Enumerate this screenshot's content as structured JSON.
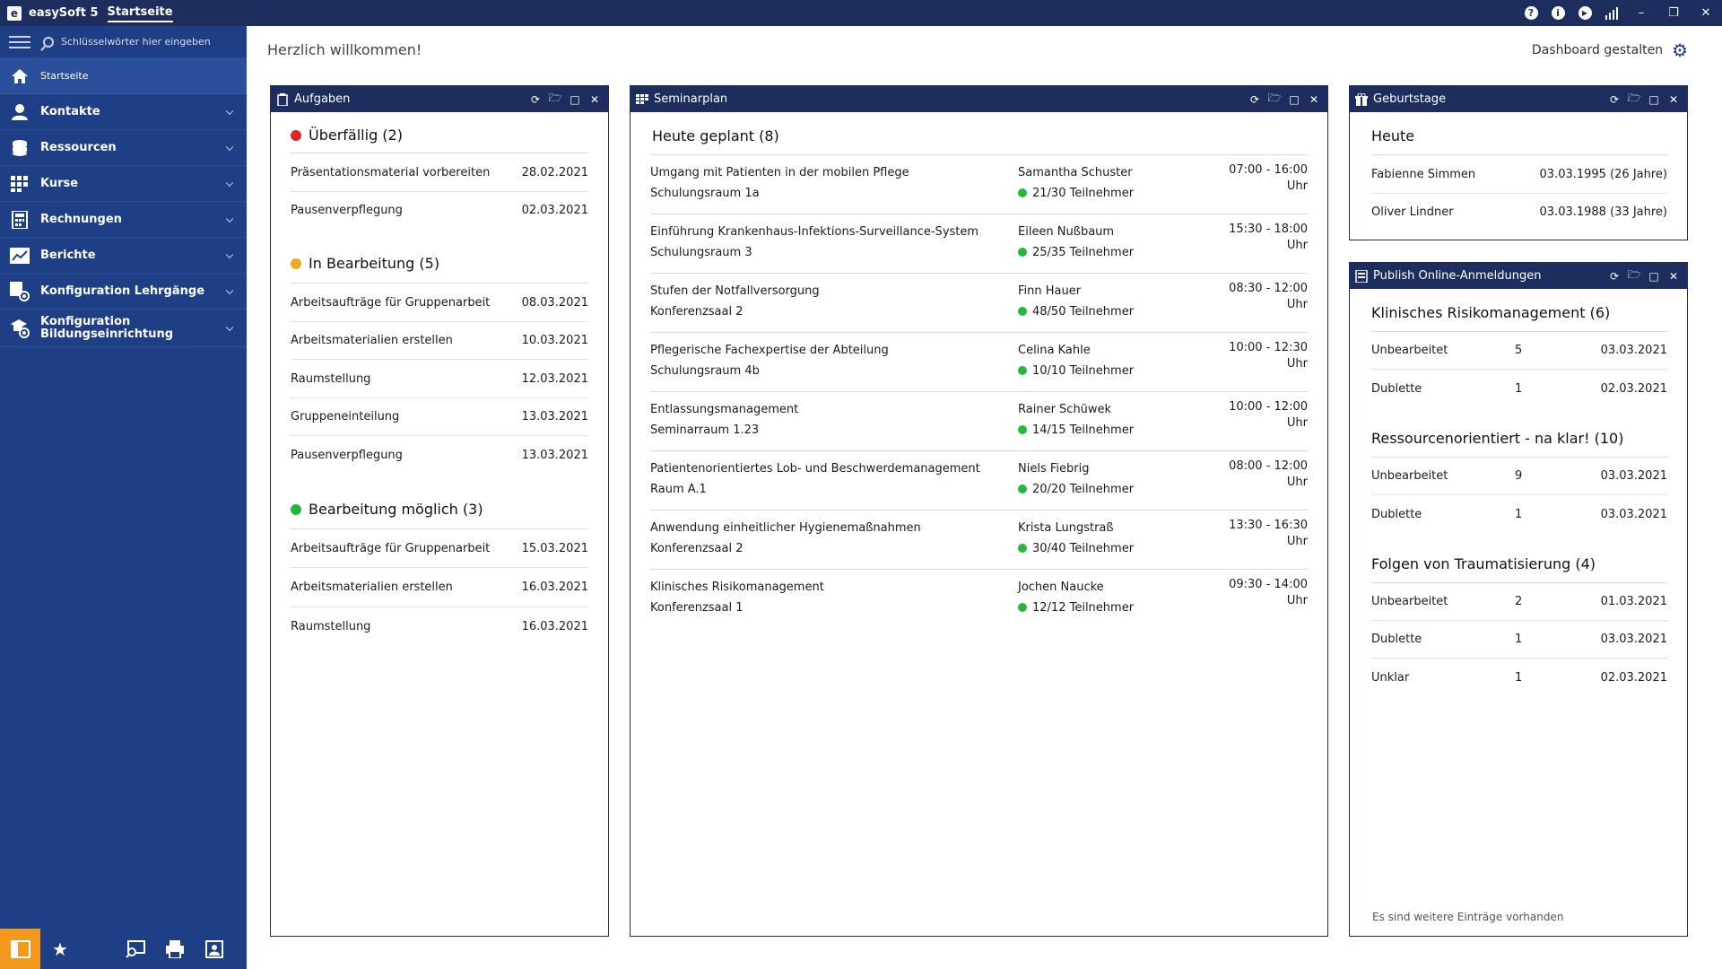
{
  "titlebar": {
    "logo": "e",
    "app_name": "easySoft 5",
    "page": "Startseite",
    "help": "?",
    "info": "i"
  },
  "sidebar": {
    "search_placeholder": "Schlüsselwörter hier eingeben",
    "home": "Startseite",
    "items": [
      {
        "label": "Kontakte",
        "icon": "user-icon"
      },
      {
        "label": "Ressourcen",
        "icon": "database-icon"
      },
      {
        "label": "Kurse",
        "icon": "grid-icon"
      },
      {
        "label": "Rechnungen",
        "icon": "calculator-icon"
      },
      {
        "label": "Berichte",
        "icon": "chart-icon"
      },
      {
        "label": "Konfiguration Lehrgänge",
        "icon": "config-courses-icon"
      },
      {
        "label": "Konfiguration Bildungseinrichtung",
        "icon": "config-institution-icon"
      }
    ]
  },
  "main": {
    "welcome": "Herzlich willkommen!",
    "dashboard_button": "Dashboard gestalten"
  },
  "tasks": {
    "title": "Aufgaben",
    "groups": [
      {
        "title": "Überfällig (2)",
        "color": "#e0242a",
        "items": [
          {
            "name": "Präsentationsmaterial vorbereiten",
            "date": "28.02.2021"
          },
          {
            "name": "Pausenverpflegung",
            "date": "02.03.2021"
          }
        ]
      },
      {
        "title": "In Bearbeitung (5)",
        "color": "#f5a623",
        "items": [
          {
            "name": "Arbeitsaufträge für Gruppenarbeit",
            "date": "08.03.2021"
          },
          {
            "name": "Arbeitsmaterialien erstellen",
            "date": "10.03.2021"
          },
          {
            "name": "Raumstellung",
            "date": "12.03.2021"
          },
          {
            "name": "Gruppeneinteilung",
            "date": "13.03.2021"
          },
          {
            "name": "Pausenverpflegung",
            "date": "13.03.2021"
          }
        ]
      },
      {
        "title": "Bearbeitung möglich (3)",
        "color": "#23b83a",
        "items": [
          {
            "name": "Arbeitsaufträge für Gruppenarbeit",
            "date": "15.03.2021"
          },
          {
            "name": "Arbeitsmaterialien erstellen",
            "date": "16.03.2021"
          },
          {
            "name": "Raumstellung",
            "date": "16.03.2021"
          }
        ]
      }
    ]
  },
  "seminar": {
    "title": "Seminarplan",
    "heading": "Heute geplant (8)",
    "items": [
      {
        "course": "Umgang mit Patienten in der mobilen Pflege",
        "room": "Schulungsraum 1a",
        "trainer": "Samantha Schuster",
        "participants": "21/30 Teilnehmer",
        "time": "07:00 - 16:00 Uhr"
      },
      {
        "course": "Einführung Krankenhaus-Infektions-Surveillance-System",
        "room": "Schulungsraum 3",
        "trainer": "Eileen Nußbaum",
        "participants": "25/35 Teilnehmer",
        "time": "15:30 - 18:00 Uhr"
      },
      {
        "course": "Stufen der Notfallversorgung",
        "room": "Konferenzsaal 2",
        "trainer": "Finn Hauer",
        "participants": "48/50 Teilnehmer",
        "time": "08:30 - 12:00 Uhr"
      },
      {
        "course": "Pflegerische Fachexpertise der Abteilung",
        "room": "Schulungsraum 4b",
        "trainer": "Celina Kahle",
        "participants": "10/10 Teilnehmer",
        "time": "10:00 - 12:30 Uhr"
      },
      {
        "course": "Entlassungsmanagement",
        "room": "Seminarraum 1.23",
        "trainer": "Rainer Schüwek",
        "participants": "14/15 Teilnehmer",
        "time": "10:00 - 12:00 Uhr"
      },
      {
        "course": "Patientenorientiertes Lob- und Beschwerdemanagement",
        "room": "Raum A.1",
        "trainer": "Niels Fiebrig",
        "participants": "20/20 Teilnehmer",
        "time": "08:00 - 12:00 Uhr"
      },
      {
        "course": "Anwendung einheitlicher Hygienemaßnahmen",
        "room": "Konferenzsaal 2",
        "trainer": "Krista Lungstraß",
        "participants": "30/40 Teilnehmer",
        "time": "13:30 - 16:30 Uhr"
      },
      {
        "course": "Klinisches Risikomanagement",
        "room": "Konferenzsaal 1",
        "trainer": "Jochen Naucke",
        "participants": "12/12 Teilnehmer",
        "time": "09:30 - 14:00 Uhr"
      }
    ]
  },
  "birthdays": {
    "title": "Geburtstage",
    "heading": "Heute",
    "items": [
      {
        "name": "Fabienne Simmen",
        "date": "03.03.1995 (26 Jahre)"
      },
      {
        "name": "Oliver Lindner",
        "date": "03.03.1988 (33 Jahre)"
      }
    ]
  },
  "publish": {
    "title": "Publish Online-Anmeldungen",
    "groups": [
      {
        "title": "Klinisches Risikomanagement (6)",
        "items": [
          {
            "status": "Unbearbeitet",
            "count": "5",
            "date": "03.03.2021"
          },
          {
            "status": "Dublette",
            "count": "1",
            "date": "02.03.2021"
          }
        ]
      },
      {
        "title": "Ressourcenorientiert - na klar! (10)",
        "items": [
          {
            "status": "Unbearbeitet",
            "count": "9",
            "date": "03.03.2021"
          },
          {
            "status": "Dublette",
            "count": "1",
            "date": "03.03.2021"
          }
        ]
      },
      {
        "title": "Folgen von Traumatisierung (4)",
        "items": [
          {
            "status": "Unbearbeitet",
            "count": "2",
            "date": "01.03.2021"
          },
          {
            "status": "Dublette",
            "count": "1",
            "date": "03.03.2021"
          },
          {
            "status": "Unklar",
            "count": "1",
            "date": "02.03.2021"
          }
        ]
      }
    ],
    "more": "Es sind weitere Einträge vorhanden"
  },
  "colors": {
    "titlebar": "#1d2d5e",
    "sidebar": "#1e3e85",
    "accent": "#f39a1e"
  }
}
